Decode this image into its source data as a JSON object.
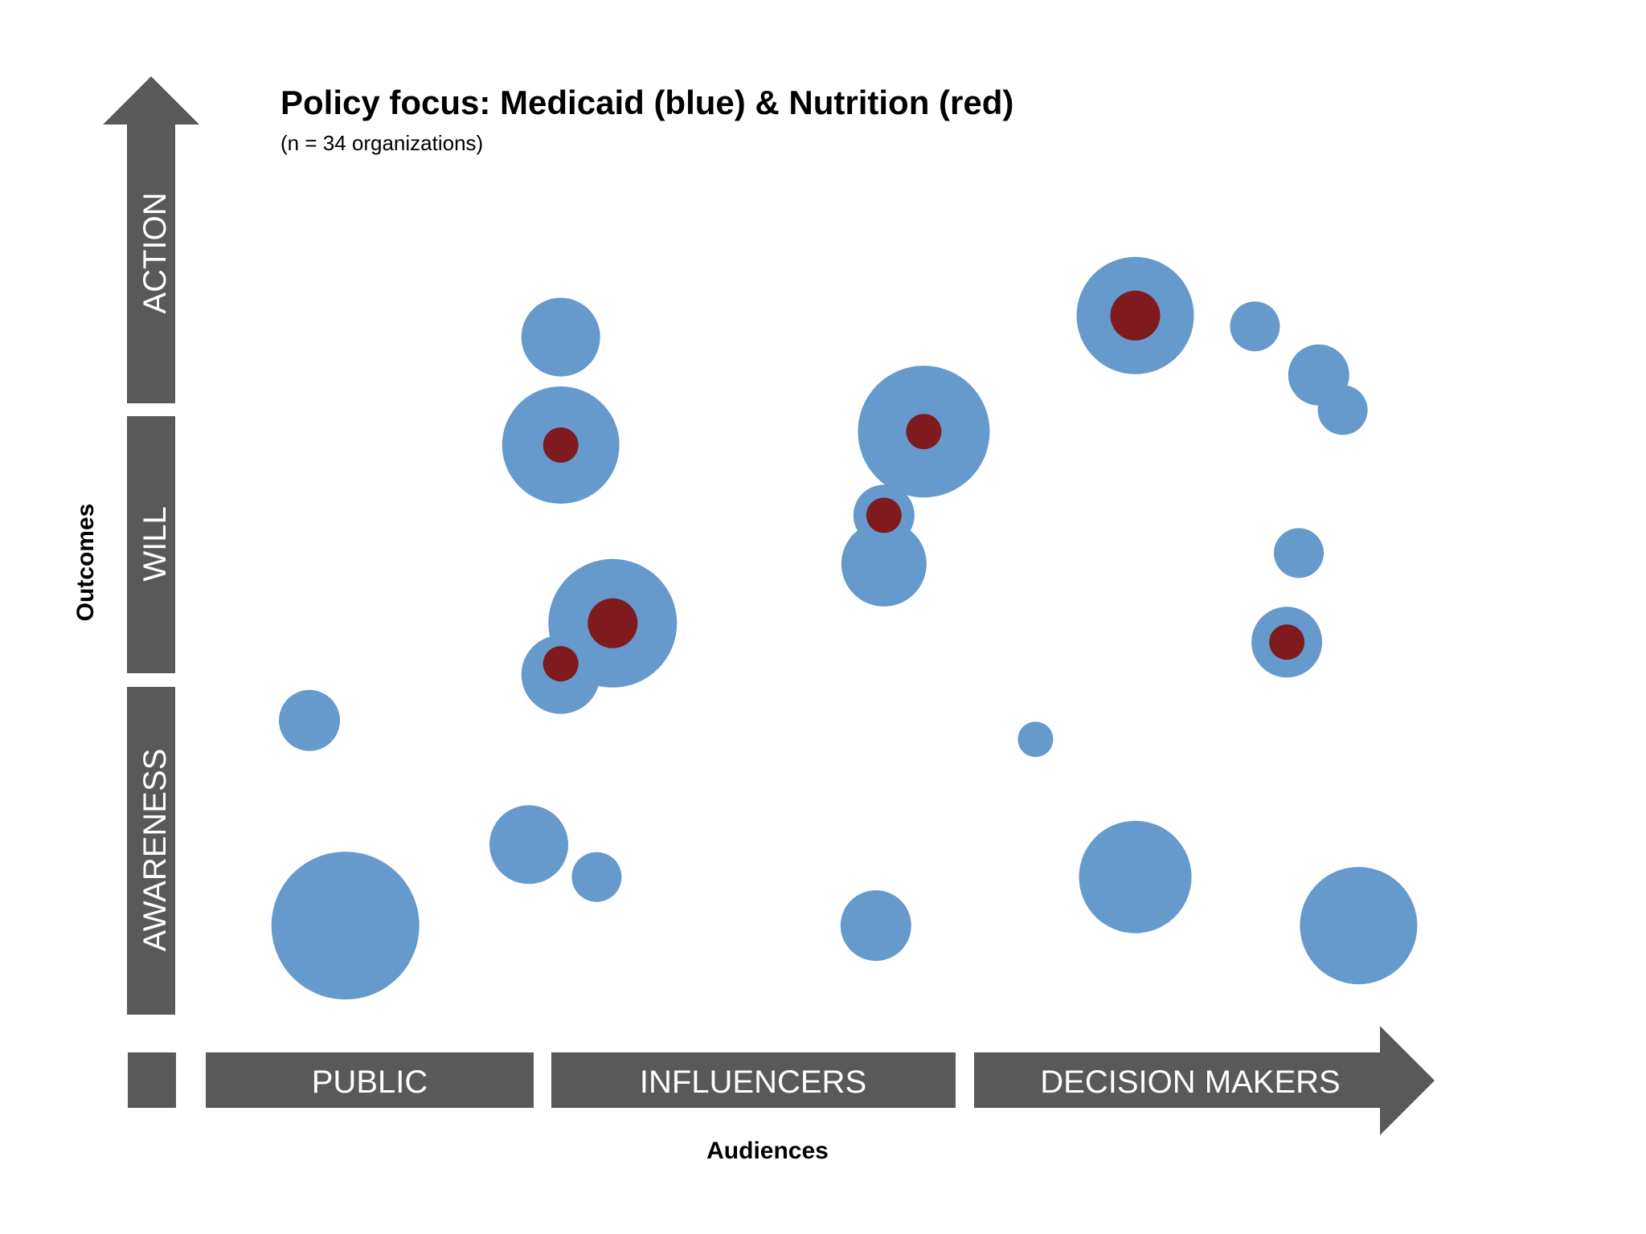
{
  "title": "Policy focus: Medicaid (blue) & Nutrition (red)",
  "subtitle": "(n = 34 organizations)",
  "colors": {
    "arrow": "#595959",
    "label_text": "#ffffff",
    "medicaid": "#6699cc",
    "nutrition": "#7f1a1e",
    "title_text": "#000000"
  },
  "y_axis": {
    "title": "Outcomes",
    "levels": [
      "AWARENESS",
      "WILL",
      "ACTION"
    ]
  },
  "x_axis": {
    "title": "Audiences",
    "groups": [
      "PUBLIC",
      "INFLUENCERS",
      "DECISION MAKERS"
    ]
  },
  "chart_data": {
    "type": "bubble",
    "title": "Policy focus: Medicaid (blue) & Nutrition (red)",
    "subtitle": "(n = 34 organizations)",
    "xlabel": "Audiences",
    "ylabel": "Outcomes",
    "x_categories": [
      "PUBLIC",
      "INFLUENCERS",
      "DECISION MAKERS"
    ],
    "y_categories": [
      "AWARENESS",
      "WILL",
      "ACTION"
    ],
    "xlim": [
      0,
      3
    ],
    "ylim": [
      0,
      3
    ],
    "series": [
      {
        "name": "Medicaid",
        "color": "#6699cc",
        "points": [
          {
            "x": 0.35,
            "y": 0.33,
            "r": 92
          },
          {
            "x": 0.26,
            "y": 1.09,
            "r": 38
          },
          {
            "x": 0.81,
            "y": 0.63,
            "r": 49
          },
          {
            "x": 0.98,
            "y": 0.51,
            "r": 31
          },
          {
            "x": 0.89,
            "y": 1.26,
            "r": 49
          },
          {
            "x": 1.02,
            "y": 1.45,
            "r": 80
          },
          {
            "x": 0.89,
            "y": 2.11,
            "r": 73
          },
          {
            "x": 0.89,
            "y": 2.51,
            "r": 49
          },
          {
            "x": 1.68,
            "y": 0.33,
            "r": 44
          },
          {
            "x": 1.7,
            "y": 1.67,
            "r": 53
          },
          {
            "x": 1.7,
            "y": 1.85,
            "r": 38
          },
          {
            "x": 1.8,
            "y": 2.16,
            "r": 82
          },
          {
            "x": 2.08,
            "y": 1.02,
            "r": 22
          },
          {
            "x": 2.33,
            "y": 0.51,
            "r": 70
          },
          {
            "x": 2.33,
            "y": 2.59,
            "r": 73
          },
          {
            "x": 2.63,
            "y": 2.55,
            "r": 31
          },
          {
            "x": 2.79,
            "y": 2.37,
            "r": 38
          },
          {
            "x": 2.85,
            "y": 2.24,
            "r": 31
          },
          {
            "x": 2.74,
            "y": 1.71,
            "r": 31
          },
          {
            "x": 2.71,
            "y": 1.38,
            "r": 44
          },
          {
            "x": 2.89,
            "y": 0.33,
            "r": 73
          }
        ]
      },
      {
        "name": "Nutrition",
        "color": "#7f1a1e",
        "points": [
          {
            "x": 0.89,
            "y": 1.3,
            "r": 22
          },
          {
            "x": 1.02,
            "y": 1.45,
            "r": 31
          },
          {
            "x": 0.89,
            "y": 2.11,
            "r": 22
          },
          {
            "x": 1.7,
            "y": 1.85,
            "r": 22
          },
          {
            "x": 1.8,
            "y": 2.16,
            "r": 22
          },
          {
            "x": 2.33,
            "y": 2.59,
            "r": 31
          },
          {
            "x": 2.71,
            "y": 1.38,
            "r": 22
          }
        ]
      }
    ]
  }
}
